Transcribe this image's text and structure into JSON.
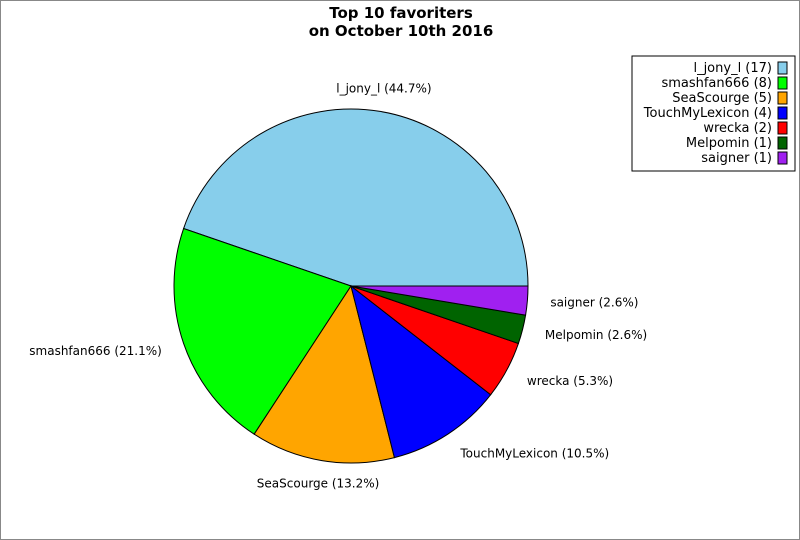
{
  "chart_data": {
    "type": "pie",
    "title_lines": [
      "Top 10 favoriters",
      "on October 10th 2016"
    ],
    "slices": [
      {
        "name": "l_jony_l",
        "value": 17,
        "percent": 44.7,
        "color": "#87ceeb"
      },
      {
        "name": "smashfan666",
        "value": 8,
        "percent": 21.1,
        "color": "#00ff00"
      },
      {
        "name": "SeaScourge",
        "value": 5,
        "percent": 13.2,
        "color": "#ffa500"
      },
      {
        "name": "TouchMyLexicon",
        "value": 4,
        "percent": 10.5,
        "color": "#0000ff"
      },
      {
        "name": "wrecka",
        "value": 2,
        "percent": 5.3,
        "color": "#ff0000"
      },
      {
        "name": "Melpomin",
        "value": 1,
        "percent": 2.6,
        "color": "#006400"
      },
      {
        "name": "saigner",
        "value": 1,
        "percent": 2.6,
        "color": "#a020f0"
      }
    ],
    "slice_labels": [
      "l_jony_l (44.7%)",
      "smashfan666 (21.1%)",
      "SeaScourge (13.2%)",
      "TouchMyLexicon (10.5%)",
      "wrecka (5.3%)",
      "Melpomin (2.6%)",
      "saigner (2.6%)"
    ],
    "legend_labels": [
      "l_jony_l (17)",
      "smashfan666 (8)",
      "SeaScourge (5)",
      "TouchMyLexicon (4)",
      "wrecka (2)",
      "Melpomin (1)",
      "saigner (1)"
    ],
    "legend_placement": "top-right",
    "start_angle": "3 o'clock",
    "direction": "counterclockwise"
  }
}
